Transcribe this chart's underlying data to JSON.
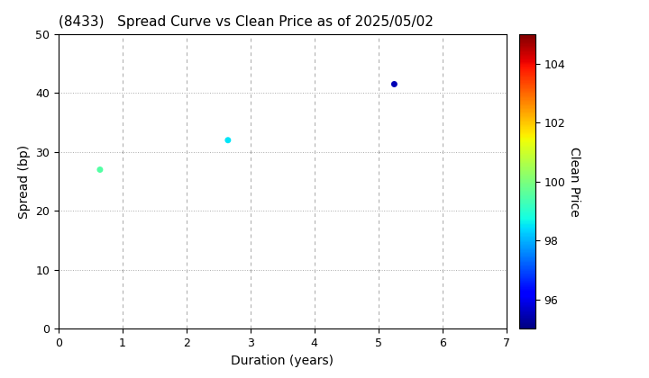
{
  "title": "(8433)   Spread Curve vs Clean Price as of 2025/05/02",
  "xlabel": "Duration (years)",
  "ylabel": "Spread (bp)",
  "colorbar_label": "Clean Price",
  "xlim": [
    0,
    7
  ],
  "ylim": [
    0,
    50
  ],
  "xticks": [
    0,
    1,
    2,
    3,
    4,
    5,
    6,
    7
  ],
  "yticks": [
    0,
    10,
    20,
    30,
    40,
    50
  ],
  "colorbar_ticks": [
    96,
    98,
    100,
    102,
    104
  ],
  "colorbar_min": 95.0,
  "colorbar_max": 105.0,
  "points": [
    {
      "duration": 0.65,
      "spread": 27,
      "clean_price": 99.5
    },
    {
      "duration": 2.65,
      "spread": 32,
      "clean_price": 98.5
    },
    {
      "duration": 5.25,
      "spread": 41.5,
      "clean_price": 95.5
    }
  ],
  "marker_size": 25,
  "background_color": "#ffffff",
  "grid_color": "#aaaaaa",
  "title_fontsize": 11,
  "axis_fontsize": 10,
  "tick_fontsize": 9
}
